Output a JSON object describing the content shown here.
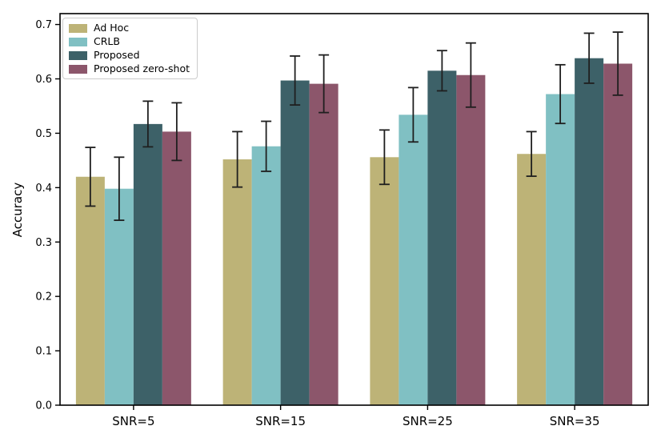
{
  "chart_data": {
    "type": "bar",
    "title": "",
    "xlabel": "",
    "ylabel": "Accuracy",
    "categories": [
      "SNR=5",
      "SNR=15",
      "SNR=25",
      "SNR=35"
    ],
    "series": [
      {
        "name": "Ad Hoc",
        "color": "#bdb377",
        "values": [
          0.42,
          0.452,
          0.456,
          0.462
        ],
        "errors": [
          0.054,
          0.051,
          0.05,
          0.041
        ]
      },
      {
        "name": "CRLB",
        "color": "#80c0c3",
        "values": [
          0.398,
          0.476,
          0.534,
          0.572
        ],
        "errors": [
          0.058,
          0.046,
          0.05,
          0.054
        ]
      },
      {
        "name": "Proposed",
        "color": "#3d6168",
        "values": [
          0.517,
          0.597,
          0.615,
          0.638
        ],
        "errors": [
          0.042,
          0.045,
          0.037,
          0.046
        ]
      },
      {
        "name": "Proposed zero-shot",
        "color": "#8c566b",
        "values": [
          0.503,
          0.591,
          0.607,
          0.628
        ],
        "errors": [
          0.053,
          0.053,
          0.059,
          0.058
        ]
      }
    ],
    "ylim": [
      0,
      0.72
    ],
    "yticks": [
      "0.0",
      "0.1",
      "0.2",
      "0.3",
      "0.4",
      "0.5",
      "0.6",
      "0.7"
    ],
    "ytick_values": [
      0.0,
      0.1,
      0.2,
      0.3,
      0.4,
      0.5,
      0.6,
      0.7
    ],
    "grid": false,
    "legend_position": "upper left",
    "errorbar_color": "#1f1f1f",
    "spine_color": "#000000",
    "tick_label_color": "#000000"
  }
}
